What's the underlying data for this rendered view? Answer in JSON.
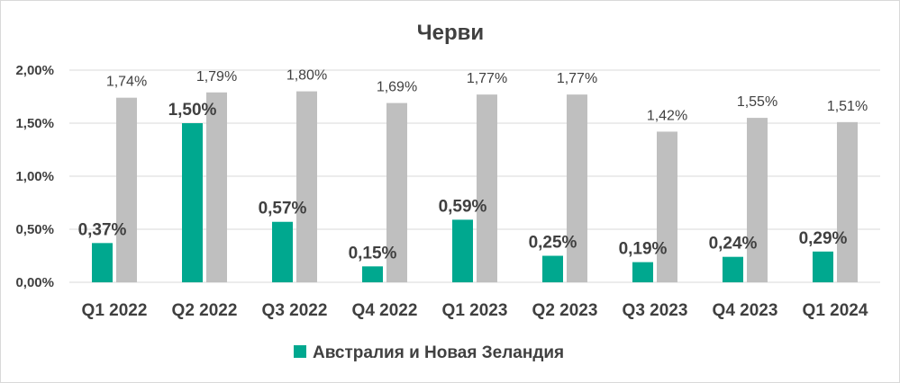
{
  "chart_data": {
    "type": "bar",
    "title": "Черви",
    "categories": [
      "Q1 2022",
      "Q2 2022",
      "Q3 2022",
      "Q4 2022",
      "Q1 2023",
      "Q2 2023",
      "Q3 2023",
      "Q4 2023",
      "Q1 2024"
    ],
    "series": [
      {
        "name": "Австралия и Новая Зеландия",
        "color": "#00a88f",
        "values": [
          0.37,
          1.5,
          0.57,
          0.15,
          0.59,
          0.25,
          0.19,
          0.24,
          0.29
        ],
        "labels": [
          "0,37%",
          "1,50%",
          "0,57%",
          "0,15%",
          "0,59%",
          "0,25%",
          "0,19%",
          "0,24%",
          "0,29%"
        ]
      },
      {
        "color": "#bfbfbf",
        "values": [
          1.74,
          1.79,
          1.8,
          1.69,
          1.77,
          1.77,
          1.42,
          1.55,
          1.51
        ],
        "labels": [
          "1,74%",
          "1,79%",
          "1,80%",
          "1,69%",
          "1,77%",
          "1,77%",
          "1,42%",
          "1,55%",
          "1,51%"
        ]
      }
    ],
    "ylim": [
      0,
      2.0
    ],
    "yticks": [
      0,
      0.5,
      1.0,
      1.5,
      2.0
    ],
    "ytick_labels": [
      "0,00%",
      "0,50%",
      "1,00%",
      "1,50%",
      "2,00%"
    ],
    "grid": true,
    "legend_position": "bottom"
  }
}
